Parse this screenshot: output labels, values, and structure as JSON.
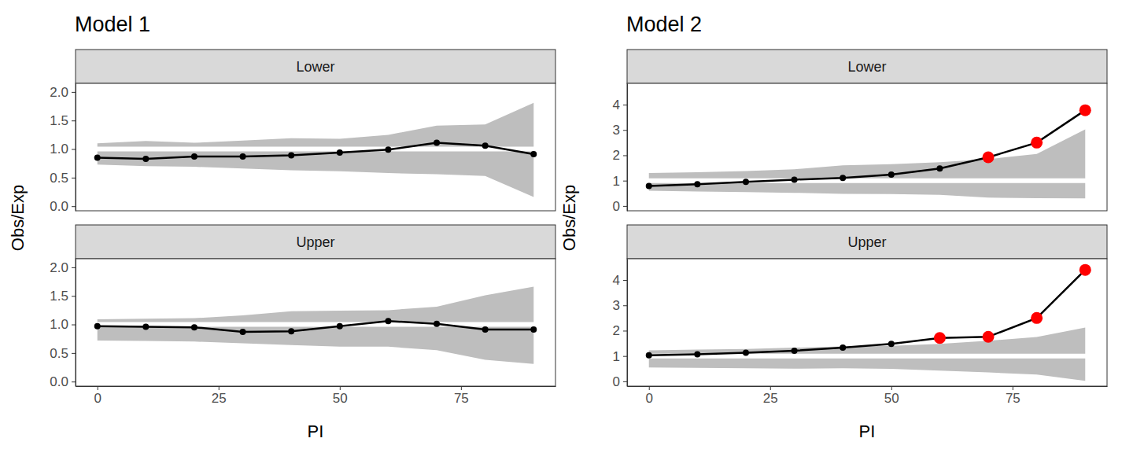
{
  "chart_data": [
    {
      "type": "line",
      "title": "Model 1",
      "x_label": "PI",
      "y_label": "Obs/Exp",
      "x": [
        0,
        10,
        20,
        30,
        40,
        50,
        60,
        70,
        80,
        90
      ],
      "xlim": [
        -4.5,
        94.5
      ],
      "xticks": [
        0,
        25,
        50,
        75
      ],
      "ylim": [
        -0.08,
        2.15
      ],
      "yticks": [
        {
          "value": 0,
          "label": "0.0"
        },
        0.5,
        {
          "value": 1,
          "label": "1.0"
        },
        1.5,
        {
          "value": 2,
          "label": "2.0"
        }
      ],
      "ref_line": 1,
      "panels": [
        {
          "name": "Lower",
          "series": [
            {
              "type": "area",
              "color": "#bebebe",
              "lower": [
                0.73,
                0.7,
                0.69,
                0.66,
                0.63,
                0.61,
                0.58,
                0.56,
                0.53,
                0.16
              ],
              "upper": [
                1.1,
                1.14,
                1.11,
                1.15,
                1.19,
                1.18,
                1.25,
                1.41,
                1.43,
                1.81
              ]
            },
            {
              "type": "line",
              "color": "#000000",
              "marker": "circle",
              "values": [
                0.85,
                0.83,
                0.87,
                0.87,
                0.89,
                0.94,
                0.99,
                1.11,
                1.06,
                0.91
              ],
              "colors": [
                "#000000",
                "#000000",
                "#000000",
                "#000000",
                "#000000",
                "#000000",
                "#000000",
                "#000000",
                "#000000",
                "#000000"
              ]
            }
          ]
        },
        {
          "name": "Upper",
          "series": [
            {
              "type": "area",
              "color": "#bebebe",
              "lower": [
                0.72,
                0.71,
                0.7,
                0.67,
                0.64,
                0.61,
                0.61,
                0.55,
                0.38,
                0.31
              ],
              "upper": [
                1.09,
                1.1,
                1.11,
                1.16,
                1.23,
                1.24,
                1.25,
                1.31,
                1.51,
                1.66
              ]
            },
            {
              "type": "line",
              "color": "#000000",
              "marker": "circle",
              "values": [
                0.97,
                0.96,
                0.95,
                0.87,
                0.88,
                0.97,
                1.06,
                1.01,
                0.91,
                0.91
              ],
              "colors": [
                "#000000",
                "#000000",
                "#000000",
                "#000000",
                "#000000",
                "#000000",
                "#000000",
                "#000000",
                "#000000",
                "#000000"
              ]
            }
          ]
        }
      ]
    },
    {
      "type": "line",
      "title": "Model 2",
      "x_label": "PI",
      "y_label": "Obs/Exp",
      "x": [
        0,
        10,
        20,
        30,
        40,
        50,
        60,
        70,
        80,
        90
      ],
      "xlim": [
        -4.5,
        94.5
      ],
      "xticks": [
        0,
        25,
        50,
        75
      ],
      "ylim": [
        -0.19,
        4.84
      ],
      "yticks": [
        0,
        1,
        2,
        3,
        4
      ],
      "ref_line": 1,
      "panels": [
        {
          "name": "Lower",
          "series": [
            {
              "type": "area",
              "color": "#bebebe",
              "lower": [
                0.6,
                0.57,
                0.55,
                0.52,
                0.48,
                0.47,
                0.44,
                0.33,
                0.31,
                0.3
              ],
              "upper": [
                1.3,
                1.33,
                1.38,
                1.45,
                1.6,
                1.65,
                1.73,
                1.85,
                2.05,
                3.02
              ]
            },
            {
              "type": "line",
              "color": "#000000",
              "marker": "circle",
              "values": [
                0.79,
                0.86,
                0.95,
                1.04,
                1.11,
                1.24,
                1.48,
                1.92,
                2.5,
                3.78
              ],
              "colors": [
                "#000000",
                "#000000",
                "#000000",
                "#000000",
                "#000000",
                "#000000",
                "#000000",
                "#ff0000",
                "#ff0000",
                "#ff0000"
              ]
            }
          ]
        },
        {
          "name": "Upper",
          "series": [
            {
              "type": "area",
              "color": "#bebebe",
              "lower": [
                0.55,
                0.53,
                0.52,
                0.5,
                0.52,
                0.49,
                0.42,
                0.35,
                0.27,
                0.02
              ],
              "upper": [
                1.22,
                1.25,
                1.28,
                1.33,
                1.38,
                1.4,
                1.48,
                1.6,
                1.75,
                2.12
              ]
            },
            {
              "type": "line",
              "color": "#000000",
              "marker": "circle",
              "values": [
                1.03,
                1.07,
                1.13,
                1.21,
                1.33,
                1.48,
                1.71,
                1.76,
                2.5,
                4.4
              ],
              "colors": [
                "#000000",
                "#000000",
                "#000000",
                "#000000",
                "#000000",
                "#000000",
                "#ff0000",
                "#ff0000",
                "#ff0000",
                "#ff0000"
              ]
            }
          ]
        }
      ]
    }
  ]
}
